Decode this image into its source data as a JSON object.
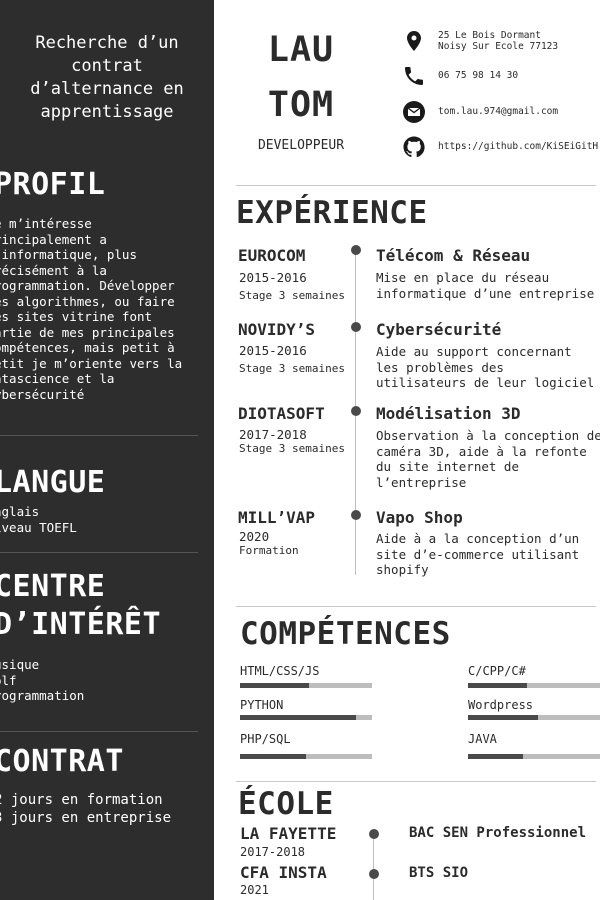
{
  "sidebar": {
    "objective": "Recherche d’un\ncontrat\nd’alternance en\napprentissage",
    "profil": {
      "heading": "PROFIL",
      "text": "e m’intéresse\nrincipalement a\n’informatique, plus\nrécisément à la\nrogrammation. Développer\nes algorithmes, ou faire\nes sites vitrine font\nartie de mes principales\nompétences, mais petit à\netit je m’oriente vers la\natascience et la\nybersécurité"
    },
    "langue": {
      "heading": "LANGUE",
      "text": "nglais\niveau TOEFL"
    },
    "interet": {
      "heading": "CENTRE\nD’INTÉRÊT",
      "text": "usique\nolf\nrogrammation"
    },
    "contrat": {
      "heading": "CONTRAT",
      "text": "2 jours en formation\n3 jours en entreprise"
    }
  },
  "header": {
    "first_name": "LAU",
    "last_name": "TOM",
    "job": "DEVELOPPEUR"
  },
  "contact": {
    "address": "25 Le Bois Dormant\nNoisy Sur Ecole 77123",
    "phone": "06 75 98 14 30",
    "email": "tom.lau.974@gmail.com",
    "github": "https://github.com/KiSEiGitH"
  },
  "experience": {
    "title": "EXPÉRIENCE",
    "items": [
      {
        "company": "EUROCOM",
        "years": "2015-2016",
        "kind": "Stage 3 semaines",
        "role": "Télécom & Réseau",
        "desc": "Mise en place du réseau\ninformatique d’une entreprise"
      },
      {
        "company": "NOVIDY’S",
        "years": "2015-2016",
        "kind": "Stage 3 semaines",
        "role": "Cybersécurité",
        "desc": "Aide au support concernant\nles problèmes des\nutilisateurs de leur logiciel"
      },
      {
        "company": "DIOTASOFT",
        "years": "2017-2018",
        "kind": "Stage 3 semaines",
        "role": "Modélisation 3D",
        "desc": "Observation à la conception de\ncaméra 3D, aide à la refonte\ndu site internet de\nl’entreprise"
      },
      {
        "company": "MILL’VAP",
        "years": "2020",
        "kind": "Formation",
        "role": "Vapo Shop",
        "desc": "Aide à a la conception d’un\nsite d’e-commerce utilisant\nshopify"
      }
    ]
  },
  "skills": {
    "title": "COMPÉTENCES",
    "items": [
      {
        "label": "HTML/CSS/JS",
        "level": 0.52
      },
      {
        "label": "C/CPP/C#",
        "level": 0.45
      },
      {
        "label": "PYTHON",
        "level": 0.88
      },
      {
        "label": "Wordpress",
        "level": 0.53
      },
      {
        "label": "PHP/SQL",
        "level": 0.5
      },
      {
        "label": "JAVA",
        "level": 0.42
      }
    ]
  },
  "school": {
    "title": "ÉCOLE",
    "items": [
      {
        "name": "LA FAYETTE",
        "years": "2017-2018",
        "degree": "BAC SEN Professionnel"
      },
      {
        "name": "CFA INSTA",
        "years": "2021",
        "degree": "BTS SIO"
      }
    ]
  },
  "icons": [
    "location-pin-icon",
    "phone-icon",
    "email-icon",
    "github-icon"
  ],
  "colors": {
    "sidebar": "#2d2d2d",
    "accent": "#4a4a4a",
    "bar_track": "#bdbdbd"
  }
}
